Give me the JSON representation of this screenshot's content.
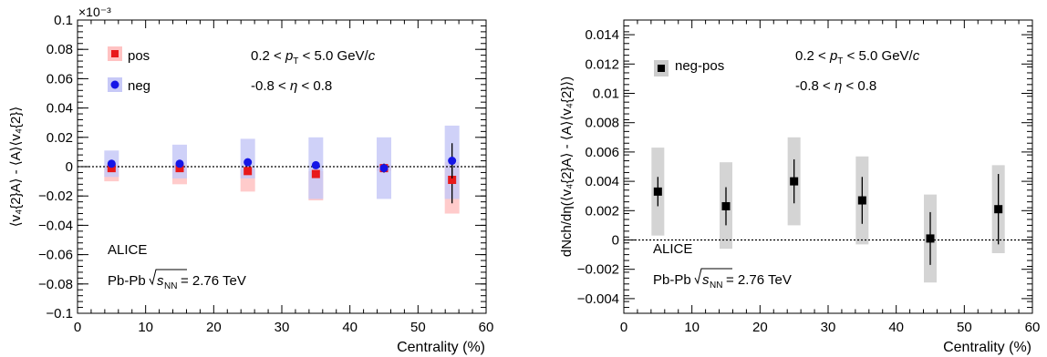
{
  "chart_data": [
    {
      "type": "scatter",
      "xlabel": "Centrality (%)",
      "ylabel": "⟨v₄{2}A⟩ - ⟨A⟩⟨v₄{2}⟩",
      "y_multiplier": "×10⁻³",
      "xlim": [
        0,
        60
      ],
      "ylim": [
        -0.1,
        0.1
      ],
      "x_ticks": [
        "0",
        "10",
        "20",
        "30",
        "40",
        "50",
        "60"
      ],
      "y_ticks": [
        "−0.1",
        "−0.08",
        "−0.06",
        "−0.04",
        "−0.02",
        "0",
        "0.02",
        "0.04",
        "0.06",
        "0.08",
        "0.1"
      ],
      "y_tick_values": [
        -0.1,
        -0.08,
        -0.06,
        -0.04,
        -0.02,
        0,
        0.02,
        0.04,
        0.06,
        0.08,
        0.1
      ],
      "grid": false,
      "reference_line": 0,
      "legend_placement": "top-left",
      "annotations": {
        "pt_range": "0.2 < pT < 5.0 GeV/c",
        "eta_range": "-0.8 < η < 0.8",
        "experiment": "ALICE",
        "system": "Pb-Pb √sNN = 2.76 TeV"
      },
      "series": [
        {
          "name": "pos",
          "marker": "square",
          "color": "#e8191b",
          "band_color": "#ffc2c2",
          "x": [
            5,
            15,
            25,
            35,
            45,
            55
          ],
          "y": [
            -0.001,
            -0.001,
            -0.003,
            -0.005,
            -0.001,
            -0.009
          ],
          "stat_err": [
            0.001,
            0.001,
            0.001,
            0.001,
            0.003,
            0.016
          ],
          "sys_low": [
            -0.01,
            -0.012,
            -0.017,
            -0.023,
            -0.003,
            -0.032
          ],
          "sys_high": [
            0.001,
            0.001,
            -0.002,
            -0.003,
            0.001,
            0.003
          ]
        },
        {
          "name": "neg",
          "marker": "circle",
          "color": "#1515e6",
          "band_color": "#c7c9f7",
          "x": [
            5,
            15,
            25,
            35,
            45,
            55
          ],
          "y": [
            0.002,
            0.002,
            0.003,
            0.001,
            -0.001,
            0.004
          ],
          "stat_err": [
            0.001,
            0.001,
            0.001,
            0.001,
            0.003,
            0.012
          ],
          "sys_low": [
            -0.007,
            -0.008,
            -0.008,
            -0.022,
            -0.022,
            -0.022
          ],
          "sys_high": [
            0.011,
            0.015,
            0.019,
            0.02,
            0.02,
            0.028
          ]
        }
      ]
    },
    {
      "type": "scatter",
      "xlabel": "Centrality (%)",
      "ylabel": "dNch/dη(⟨v₄{2}A⟩ - ⟨A⟩⟨v₄{2}⟩)",
      "xlim": [
        0,
        60
      ],
      "ylim": [
        -0.005,
        0.015
      ],
      "x_ticks": [
        "0",
        "10",
        "20",
        "30",
        "40",
        "50",
        "60"
      ],
      "y_ticks": [
        "−0.004",
        "−0.002",
        "0",
        "0.002",
        "0.004",
        "0.006",
        "0.008",
        "0.01",
        "0.012",
        "0.014"
      ],
      "y_tick_values": [
        -0.004,
        -0.002,
        0,
        0.002,
        0.004,
        0.006,
        0.008,
        0.01,
        0.012,
        0.014
      ],
      "grid": false,
      "reference_line": 0,
      "legend_placement": "top-left",
      "annotations": {
        "pt_range": "0.2 < pT < 5.0 GeV/c",
        "eta_range": "-0.8 < η < 0.8",
        "experiment": "ALICE",
        "system": "Pb-Pb √sNN = 2.76 TeV"
      },
      "series": [
        {
          "name": "neg-pos",
          "marker": "square",
          "color": "#000000",
          "band_color": "#cccccc",
          "x": [
            5,
            15,
            25,
            35,
            45,
            55
          ],
          "y": [
            0.0033,
            0.0023,
            0.004,
            0.0027,
            0.0001,
            0.0021
          ],
          "stat_err": [
            0.001,
            0.0013,
            0.0015,
            0.0016,
            0.0018,
            0.0024
          ],
          "sys_low": [
            0.0003,
            -0.0006,
            0.001,
            -0.0003,
            -0.0029,
            -0.0009
          ],
          "sys_high": [
            0.0063,
            0.0053,
            0.007,
            0.0057,
            0.0031,
            0.0051
          ]
        }
      ]
    }
  ]
}
